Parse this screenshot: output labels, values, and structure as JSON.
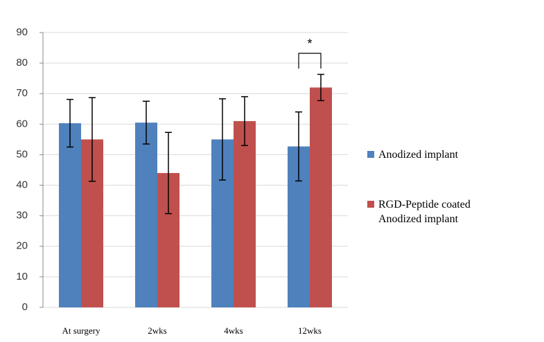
{
  "chart_data": {
    "type": "bar",
    "categories": [
      "At surgery",
      "2wks",
      "4wks",
      "12wks"
    ],
    "series": [
      {
        "name": "Anodized implant",
        "color": "#4f81bd",
        "values": [
          60.3,
          60.5,
          55,
          52.7
        ],
        "errors": [
          7.8,
          7,
          13.3,
          11.3
        ]
      },
      {
        "name": "RGD-Peptide coated Anodized implant",
        "color": "#c0504d",
        "values": [
          55,
          44,
          61,
          72
        ],
        "errors": [
          13.7,
          13.3,
          8,
          4.3
        ]
      }
    ],
    "ylim": [
      0,
      90
    ],
    "yticks": [
      0,
      10,
      20,
      30,
      40,
      50,
      60,
      70,
      80,
      90
    ],
    "grid": true,
    "annotation": "*"
  }
}
